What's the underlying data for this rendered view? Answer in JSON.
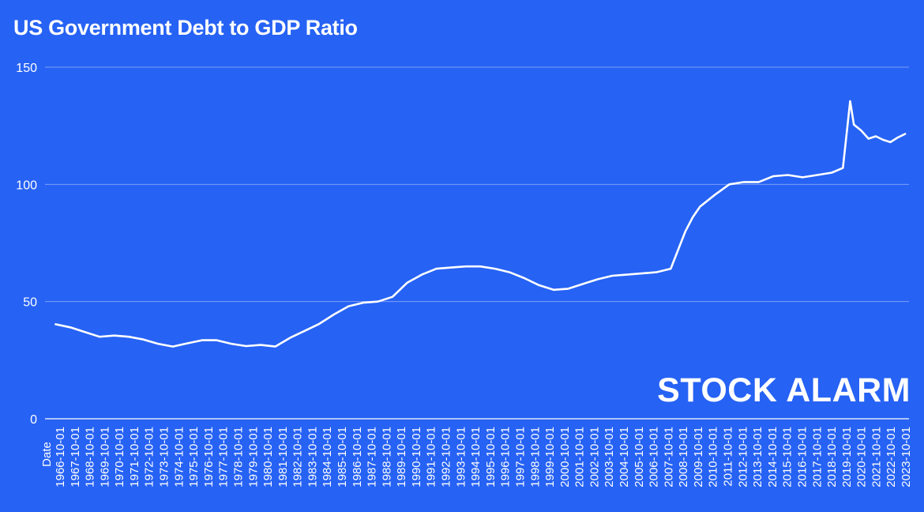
{
  "chart_data": {
    "type": "line",
    "title": "US Government Debt to GDP Ratio",
    "xlabel": "Date",
    "ylabel": "",
    "ylim": [
      0,
      150
    ],
    "yticks": [
      0,
      50,
      100,
      150
    ],
    "grid": true,
    "legend": "none",
    "x_tick_labels": [
      "1966-10-01",
      "1967-10-01",
      "1968-10-01",
      "1969-10-01",
      "1970-10-01",
      "1971-10-01",
      "1972-10-01",
      "1973-10-01",
      "1974-10-01",
      "1975-10-01",
      "1976-10-01",
      "1977-10-01",
      "1978-10-01",
      "1979-10-01",
      "1980-10-01",
      "1981-10-01",
      "1982-10-01",
      "1983-10-01",
      "1984-10-01",
      "1985-10-01",
      "1986-10-01",
      "1987-10-01",
      "1988-10-01",
      "1989-10-01",
      "1990-10-01",
      "1991-10-01",
      "1992-10-01",
      "1993-10-01",
      "1994-10-01",
      "1995-10-01",
      "1996-10-01",
      "1997-10-01",
      "1998-10-01",
      "1999-10-01",
      "2000-10-01",
      "2001-10-01",
      "2002-10-01",
      "2003-10-01",
      "2004-10-01",
      "2005-10-01",
      "2006-10-01",
      "2007-10-01",
      "2008-10-01",
      "2009-10-01",
      "2010-10-01",
      "2011-10-01",
      "2012-10-01",
      "2013-10-01",
      "2014-10-01",
      "2015-10-01",
      "2016-10-01",
      "2017-10-01",
      "2018-10-01",
      "2019-10-01",
      "2020-10-01",
      "2021-10-01",
      "2022-10-01",
      "2023-10-01"
    ],
    "series": [
      {
        "x": [
          "1966-01-01",
          "1967-01-01",
          "1968-01-01",
          "1969-01-01",
          "1970-01-01",
          "1971-01-01",
          "1972-01-01",
          "1973-01-01",
          "1974-01-01",
          "1975-01-01",
          "1976-01-01",
          "1977-01-01",
          "1978-01-01",
          "1979-01-01",
          "1980-01-01",
          "1981-01-01",
          "1982-01-01",
          "1983-01-01",
          "1984-01-01",
          "1985-01-01",
          "1986-01-01",
          "1987-01-01",
          "1988-01-01",
          "1989-01-01",
          "1990-01-01",
          "1991-01-01",
          "1992-01-01",
          "1993-01-01",
          "1994-01-01",
          "1995-01-01",
          "1996-01-01",
          "1997-01-01",
          "1998-01-01",
          "1999-01-01",
          "2000-01-01",
          "2001-01-01",
          "2002-01-01",
          "2003-01-01",
          "2004-01-01",
          "2005-01-01",
          "2006-01-01",
          "2007-01-01",
          "2008-01-01",
          "2008-07-01",
          "2009-01-01",
          "2009-07-01",
          "2010-01-01",
          "2011-01-01",
          "2012-01-01",
          "2013-01-01",
          "2014-01-01",
          "2015-01-01",
          "2016-01-01",
          "2017-01-01",
          "2018-01-01",
          "2019-01-01",
          "2019-10-01",
          "2020-04-01",
          "2020-07-01",
          "2021-01-01",
          "2021-07-01",
          "2022-01-01",
          "2022-07-01",
          "2023-01-01",
          "2023-07-01",
          "2024-01-01"
        ],
        "values": [
          40.3,
          39.0,
          37.0,
          35.0,
          35.5,
          35.0,
          33.8,
          32.0,
          30.8,
          32.2,
          33.5,
          33.5,
          32.0,
          31.0,
          31.5,
          30.8,
          34.5,
          37.5,
          40.5,
          44.5,
          48.0,
          49.5,
          50.0,
          52.0,
          58.0,
          61.5,
          64.0,
          64.5,
          65.0,
          65.0,
          64.0,
          62.5,
          60.0,
          57.0,
          55.0,
          55.5,
          57.5,
          59.5,
          61.0,
          61.5,
          62.0,
          62.5,
          64.0,
          72.0,
          80.0,
          86.0,
          90.5,
          95.5,
          100.0,
          101.0,
          101.0,
          103.5,
          104.0,
          103.0,
          104.0,
          105.0,
          107.0,
          135.5,
          125.5,
          123.0,
          119.5,
          120.5,
          119.0,
          118.0,
          120.0,
          121.5
        ]
      }
    ]
  },
  "brand": {
    "logo_text": "STOCK ALARM"
  },
  "colors": {
    "background": "#2662f4",
    "line": "#ffffff",
    "grid": "#7f9ff7",
    "text": "#ffffff"
  }
}
